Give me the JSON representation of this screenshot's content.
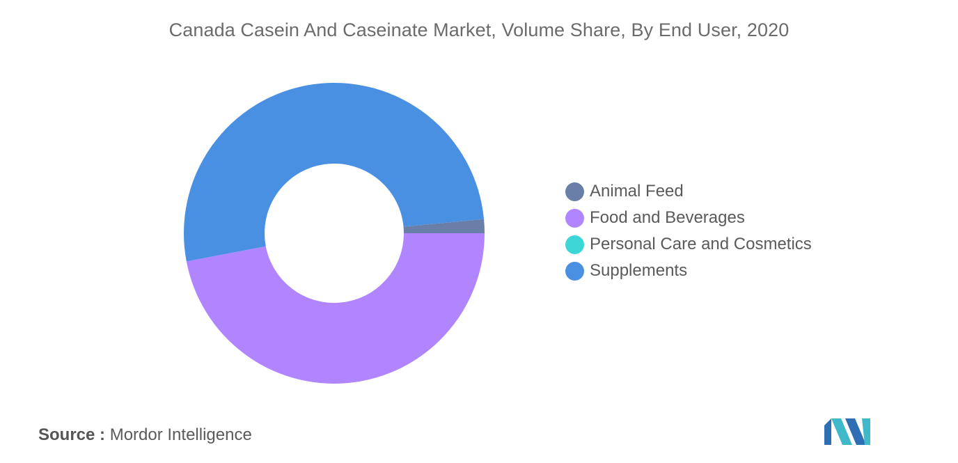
{
  "chart_data": {
    "type": "pie",
    "style": "donut",
    "title": "Canada Casein And Caseinate Market, Volume Share, By End User, 2020",
    "categories": [
      "Animal Feed",
      "Food and Beverages",
      "Personal Care and Cosmetics",
      "Supplements"
    ],
    "values": [
      1.5,
      47.0,
      0.0,
      51.5
    ],
    "unit": "%",
    "colors": [
      "#6a7fa8",
      "#b085ff",
      "#3dd6d6",
      "#4a90e2"
    ],
    "legend_position": "right"
  },
  "source": {
    "label": "Source :",
    "text": "Mordor Intelligence"
  },
  "logo": {
    "icon": "mordor-intelligence-logo-icon",
    "colors": [
      "#2e6fb3",
      "#3fb8c9"
    ]
  }
}
